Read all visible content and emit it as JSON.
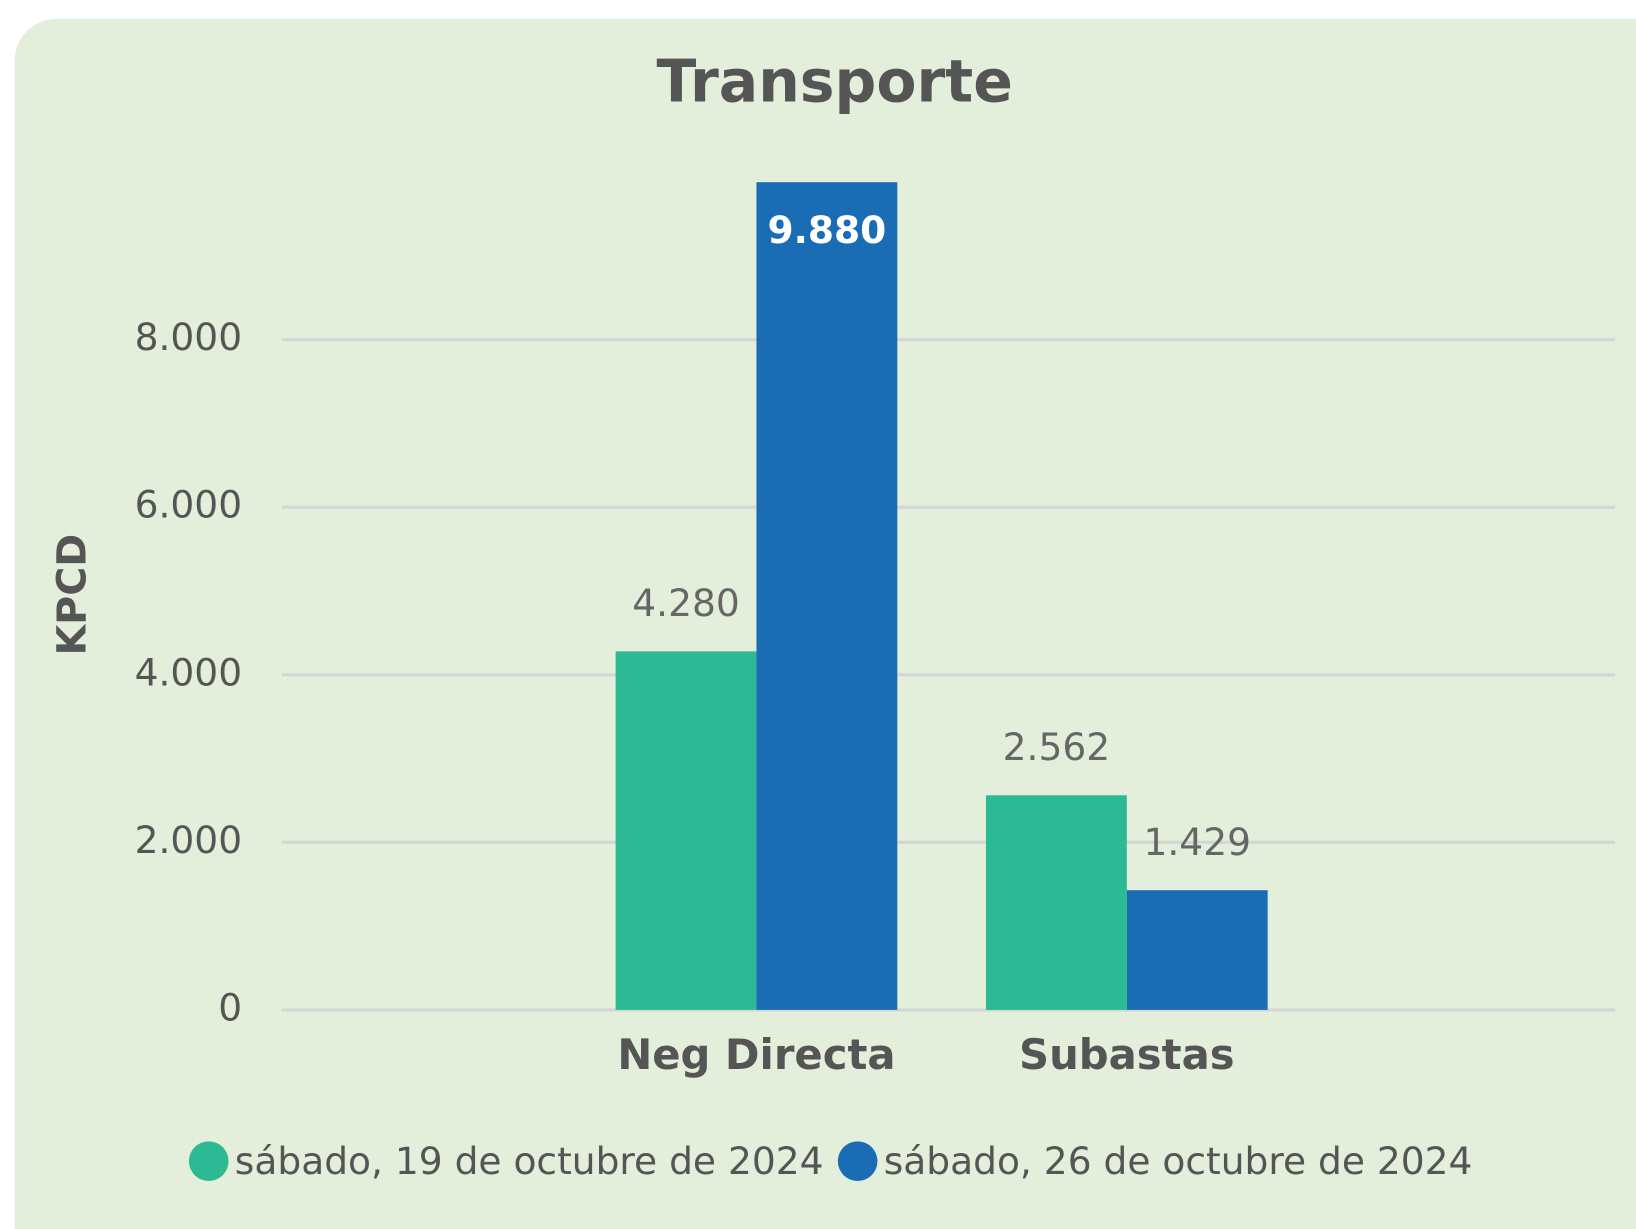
{
  "chart_data": {
    "type": "bar",
    "title": "Transporte",
    "y_label": "KPCD",
    "categories": [
      "Neg Directa",
      "Subastas"
    ],
    "series": [
      {
        "name": "sábado, 19 de octubre de 2024",
        "color": "#2db994",
        "values": [
          4280,
          2562
        ],
        "value_labels": [
          "4.280",
          "2.562"
        ]
      },
      {
        "name": "sábado, 26 de octubre de 2024",
        "color": "#1a6db5",
        "values": [
          9880,
          1429
        ],
        "value_labels": [
          "9.880",
          "1.429"
        ]
      }
    ],
    "ylim": [
      0,
      10000
    ],
    "yticks": [
      0,
      {
        "value": 2000,
        "label": "2.000"
      },
      {
        "value": 4000,
        "label": "4.000"
      },
      {
        "value": 6000,
        "label": "6.000"
      },
      {
        "value": 8000,
        "label": "8.000"
      }
    ],
    "grid": true,
    "legend": "bottom"
  }
}
